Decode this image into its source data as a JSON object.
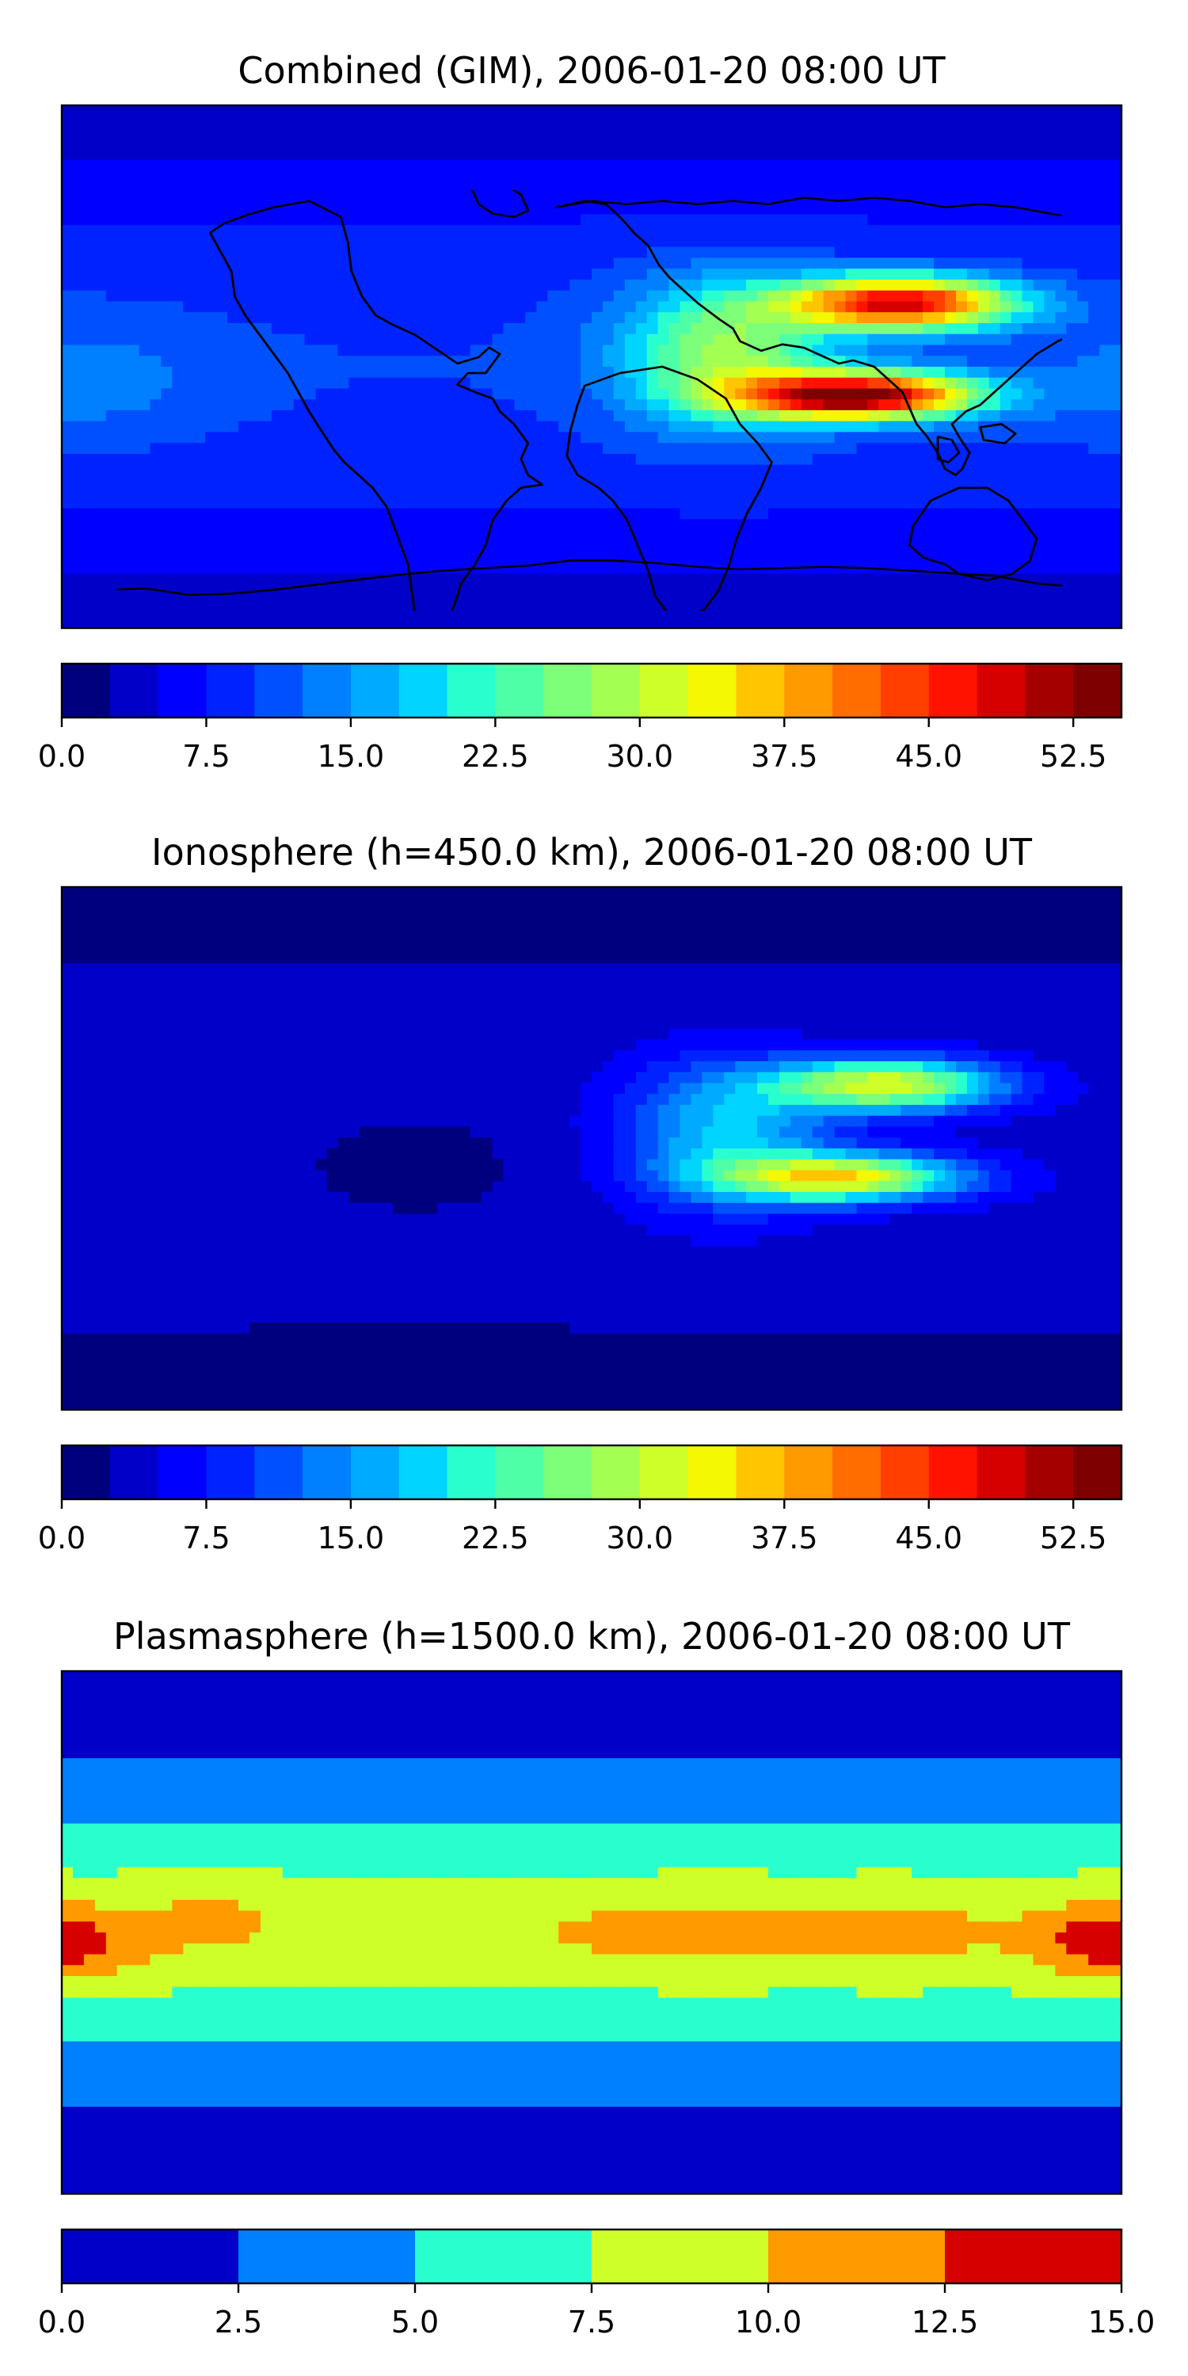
{
  "chart_data": [
    {
      "type": "heatmap",
      "title": "Combined (GIM), 2006-01-20 08:00 UT",
      "colorbar": {
        "levels": [
          0.0,
          2.5,
          5.0,
          7.5,
          10.0,
          12.5,
          15.0,
          17.5,
          20.0,
          22.5,
          25.0,
          27.5,
          30.0,
          32.5,
          35.0,
          37.5,
          40.0,
          42.5,
          45.0,
          47.5,
          50.0,
          52.5,
          55.0
        ],
        "tick_labels": [
          "0.0",
          "7.5",
          "15.0",
          "22.5",
          "30.0",
          "37.5",
          "45.0",
          "52.5"
        ],
        "colors": [
          "#00007f",
          "#0000c8",
          "#0000ff",
          "#0022ff",
          "#0050ff",
          "#0080ff",
          "#00aaff",
          "#00d4ff",
          "#29ffce",
          "#4fffa7",
          "#7dff7a",
          "#a4ff53",
          "#ceff29",
          "#f4f802",
          "#ffc600",
          "#ff9a00",
          "#ff6c00",
          "#ff3f00",
          "#ff1300",
          "#d70000",
          "#a40000",
          "#7f0000"
        ]
      },
      "field": {
        "base": 10.0,
        "polar_low": 3.5,
        "blobs": [
          {
            "lon": 105,
            "lat": 22,
            "value": 40,
            "slon": 38,
            "slat": 9
          },
          {
            "lon": 90,
            "lat": -10,
            "value": 45,
            "slon": 40,
            "slat": 8
          },
          {
            "lon": 45,
            "lat": 5,
            "value": 18,
            "slon": 35,
            "slat": 25
          },
          {
            "lon": -170,
            "lat": -5,
            "value": 4,
            "slon": 40,
            "slat": 20
          }
        ]
      }
    },
    {
      "type": "heatmap",
      "title": "Ionosphere  (h=450.0 km), 2006-01-20 08:00 UT",
      "colorbar": {
        "levels": [
          0.0,
          2.5,
          5.0,
          7.5,
          10.0,
          12.5,
          15.0,
          17.5,
          20.0,
          22.5,
          25.0,
          27.5,
          30.0,
          32.5,
          35.0,
          37.5,
          40.0,
          42.5,
          45.0,
          47.5,
          50.0,
          52.5,
          55.0
        ],
        "tick_labels": [
          "0.0",
          "7.5",
          "15.0",
          "22.5",
          "30.0",
          "37.5",
          "45.0",
          "52.5"
        ],
        "colors": [
          "#00007f",
          "#0000c8",
          "#0000ff",
          "#0022ff",
          "#0050ff",
          "#0080ff",
          "#00aaff",
          "#00d4ff",
          "#29ffce",
          "#4fffa7",
          "#7dff7a",
          "#a4ff53",
          "#ceff29",
          "#f4f802",
          "#ffc600",
          "#ff9a00",
          "#ff6c00",
          "#ff3f00",
          "#ff1300",
          "#d70000",
          "#a40000",
          "#7f0000"
        ]
      },
      "field": {
        "base": 4.0,
        "polar_low": 1.5,
        "blobs": [
          {
            "lon": 100,
            "lat": 22,
            "value": 28,
            "slon": 38,
            "slat": 9
          },
          {
            "lon": 85,
            "lat": -10,
            "value": 30,
            "slon": 40,
            "slat": 8
          },
          {
            "lon": 45,
            "lat": 5,
            "value": 14,
            "slon": 35,
            "slat": 25
          },
          {
            "lon": -60,
            "lat": -5,
            "value": -2,
            "slon": 60,
            "slat": 25
          }
        ]
      }
    },
    {
      "type": "heatmap",
      "title": "Plasmasphere (h=1500.0 km), 2006-01-20 08:00 UT",
      "colorbar": {
        "levels": [
          0.0,
          2.5,
          5.0,
          7.5,
          10.0,
          12.5,
          15.0
        ],
        "tick_labels": [
          "0.0",
          "2.5",
          "5.0",
          "7.5",
          "10.0",
          "12.5",
          "15.0"
        ],
        "colors": [
          "#0000c8",
          "#0080ff",
          "#29ffce",
          "#ceff29",
          "#ff9a00",
          "#d70000"
        ]
      },
      "field": {
        "type": "band",
        "peak": 9.0,
        "center_lat": 0,
        "width": 42,
        "floor": 1.5,
        "blobs": [
          {
            "lon": -175,
            "lat": -5,
            "value": 3.0,
            "slon": 25,
            "slat": 12
          },
          {
            "lon": 170,
            "lat": -2,
            "value": 3.2,
            "slon": 22,
            "slat": 12
          },
          {
            "lon": 40,
            "lat": 0,
            "value": 2.2,
            "slon": 60,
            "slat": 12
          },
          {
            "lon": 110,
            "lat": 0,
            "value": 1.5,
            "slon": 30,
            "slat": 12
          },
          {
            "lon": -130,
            "lat": 5,
            "value": 1.8,
            "slon": 25,
            "slat": 12
          }
        ]
      }
    }
  ]
}
